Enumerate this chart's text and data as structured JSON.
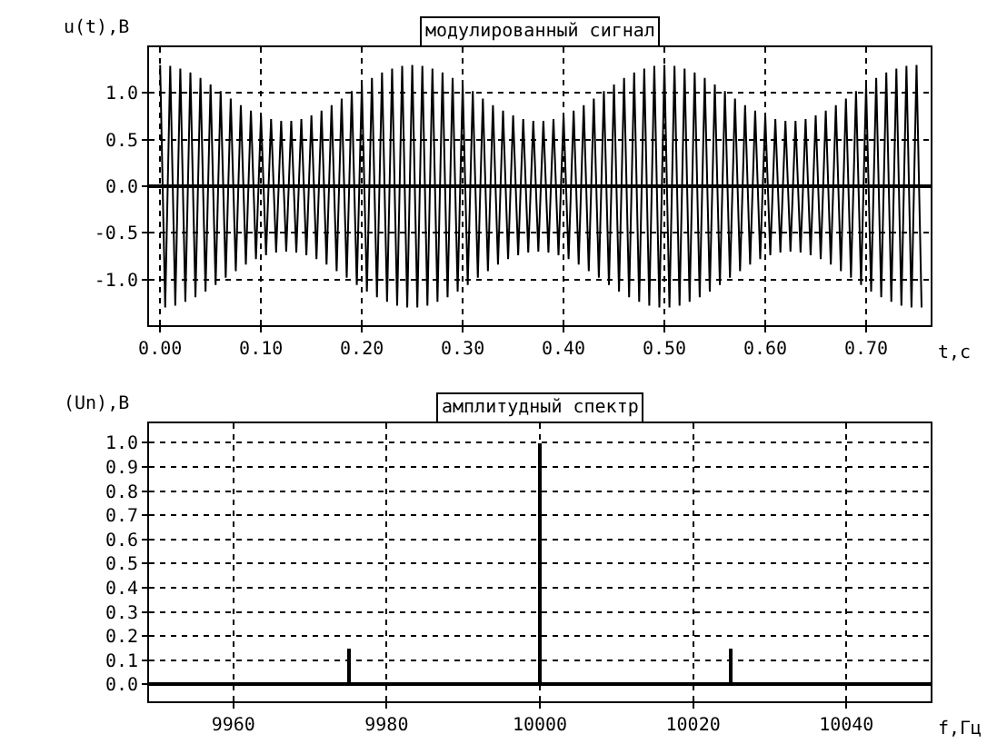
{
  "chart_data": [
    {
      "type": "line",
      "title": "модулированный сигнал",
      "xlabel": "t,c",
      "ylabel": "u(t),В",
      "grid": true,
      "marker": "none",
      "line_style": "solid",
      "xlim": [
        -0.011,
        0.764
      ],
      "ylim": [
        -1.49,
        1.49
      ],
      "xticks": [
        {
          "value": 0,
          "label": "0.00"
        },
        {
          "value": 0.1,
          "label": "0.10"
        },
        {
          "value": 0.2,
          "label": "0.20"
        },
        {
          "value": 0.3,
          "label": "0.30"
        },
        {
          "value": 0.4,
          "label": "0.40"
        },
        {
          "value": 0.5,
          "label": "0.50"
        },
        {
          "value": 0.6,
          "label": "0.60"
        },
        {
          "value": 0.7,
          "label": "0.70"
        }
      ],
      "yticks": [
        {
          "value": -1,
          "label": "-1.0"
        },
        {
          "value": -0.5,
          "label": "-0.5"
        },
        {
          "value": 0,
          "label": "0.0"
        },
        {
          "value": 0.5,
          "label": "0.5"
        },
        {
          "value": 1,
          "label": "1.0"
        }
      ],
      "x": [
        0,
        0.005,
        0.01,
        0.015,
        0.02,
        0.025,
        0.03,
        0.035,
        0.04,
        0.045,
        0.05,
        0.055,
        0.06,
        0.065,
        0.07,
        0.075,
        0.08,
        0.085,
        0.09,
        0.095,
        0.1,
        0.105,
        0.11,
        0.115,
        0.12,
        0.125,
        0.13,
        0.135,
        0.14,
        0.145,
        0.15,
        0.155,
        0.16,
        0.165,
        0.17,
        0.175,
        0.18,
        0.185,
        0.19,
        0.195,
        0.2,
        0.205,
        0.21,
        0.215,
        0.22,
        0.225,
        0.23,
        0.235,
        0.24,
        0.245,
        0.25,
        0.255,
        0.26,
        0.265,
        0.27,
        0.275,
        0.28,
        0.285,
        0.29,
        0.295,
        0.3,
        0.305,
        0.31,
        0.315,
        0.32,
        0.325,
        0.33,
        0.335,
        0.34,
        0.345,
        0.35,
        0.355,
        0.36,
        0.365,
        0.37,
        0.375,
        0.38,
        0.385,
        0.39,
        0.395,
        0.4,
        0.405,
        0.41,
        0.415,
        0.42,
        0.425,
        0.43,
        0.435,
        0.44,
        0.445,
        0.45,
        0.455,
        0.46,
        0.465,
        0.47,
        0.475,
        0.48,
        0.485,
        0.49,
        0.495,
        0.5,
        0.505,
        0.51,
        0.515,
        0.52,
        0.525,
        0.53,
        0.535,
        0.54,
        0.545,
        0.55,
        0.555,
        0.56,
        0.565,
        0.57,
        0.575,
        0.58,
        0.585,
        0.59,
        0.595,
        0.6,
        0.605,
        0.61,
        0.615,
        0.62,
        0.625,
        0.63,
        0.635,
        0.64,
        0.645,
        0.65,
        0.655,
        0.66,
        0.665,
        0.67,
        0.675,
        0.68,
        0.685,
        0.69,
        0.695,
        0.7,
        0.705,
        0.71,
        0.715,
        0.72,
        0.725,
        0.73,
        0.735,
        0.74,
        0.745,
        0.75,
        0.755
      ],
      "series": [
        {
          "color": "#000000",
          "values": [
            1.3,
            -1.3,
            1.29,
            -1.28,
            1.26,
            -1.24,
            1.22,
            -1.19,
            1.16,
            -1.13,
            1.09,
            -1.06,
            1.02,
            -0.98,
            0.94,
            -0.91,
            0.87,
            -0.84,
            0.81,
            -0.78,
            0.76,
            -0.74,
            0.72,
            -0.71,
            0.7,
            -0.7,
            0.7,
            -0.71,
            0.72,
            -0.74,
            0.76,
            -0.78,
            0.81,
            -0.84,
            0.87,
            -0.91,
            0.94,
            -0.98,
            1.02,
            -1.06,
            1.09,
            -1.13,
            1.16,
            -1.19,
            1.22,
            -1.24,
            1.26,
            -1.28,
            1.29,
            -1.3,
            1.3,
            -1.3,
            1.29,
            -1.28,
            1.26,
            -1.24,
            1.22,
            -1.19,
            1.16,
            -1.13,
            1.09,
            -1.06,
            1.02,
            -0.98,
            0.94,
            -0.91,
            0.87,
            -0.84,
            0.81,
            -0.78,
            0.76,
            -0.74,
            0.72,
            -0.71,
            0.7,
            -0.7,
            0.7,
            -0.71,
            0.72,
            -0.74,
            0.76,
            -0.78,
            0.81,
            -0.84,
            0.87,
            -0.91,
            0.94,
            -0.98,
            1.02,
            -1.06,
            1.09,
            -1.13,
            1.16,
            -1.19,
            1.22,
            -1.24,
            1.26,
            -1.28,
            1.29,
            -1.3,
            1.3,
            -1.3,
            1.29,
            -1.28,
            1.26,
            -1.24,
            1.22,
            -1.19,
            1.16,
            -1.13,
            1.09,
            -1.06,
            1.02,
            -0.98,
            0.94,
            -0.91,
            0.87,
            -0.84,
            0.81,
            -0.78,
            0.76,
            -0.74,
            0.72,
            -0.71,
            0.7,
            -0.7,
            0.7,
            -0.71,
            0.72,
            -0.74,
            0.76,
            -0.78,
            0.81,
            -0.84,
            0.87,
            -0.91,
            0.94,
            -0.98,
            1.02,
            -1.06,
            1.09,
            -1.13,
            1.16,
            -1.19,
            1.22,
            -1.24,
            1.26,
            -1.28,
            1.29,
            -1.3,
            1.3,
            -1.3
          ]
        }
      ]
    },
    {
      "type": "bar",
      "title": "амплитудный спектр",
      "xlabel": "f,Гц",
      "ylabel": "(Un),В",
      "grid": true,
      "xlim": [
        9949,
        10051
      ],
      "ylim": [
        -0.07,
        1.08
      ],
      "xticks": [
        9960,
        9980,
        10000,
        10020,
        10040
      ],
      "yticks": [
        {
          "value": 0,
          "label": "0.0"
        },
        {
          "value": 0.1,
          "label": "0.1"
        },
        {
          "value": 0.2,
          "label": "0.2"
        },
        {
          "value": 0.3,
          "label": "0.3"
        },
        {
          "value": 0.4,
          "label": "0.4"
        },
        {
          "value": 0.5,
          "label": "0.5"
        },
        {
          "value": 0.6,
          "label": "0.6"
        },
        {
          "value": 0.7,
          "label": "0.7"
        },
        {
          "value": 0.8,
          "label": "0.8"
        },
        {
          "value": 0.9,
          "label": "0.9"
        },
        {
          "value": 1,
          "label": "1.0"
        }
      ],
      "x": [
        9975,
        10000,
        10025
      ],
      "series": [
        {
          "color": "#000000",
          "values": [
            0.15,
            1.0,
            0.15
          ]
        }
      ]
    }
  ]
}
